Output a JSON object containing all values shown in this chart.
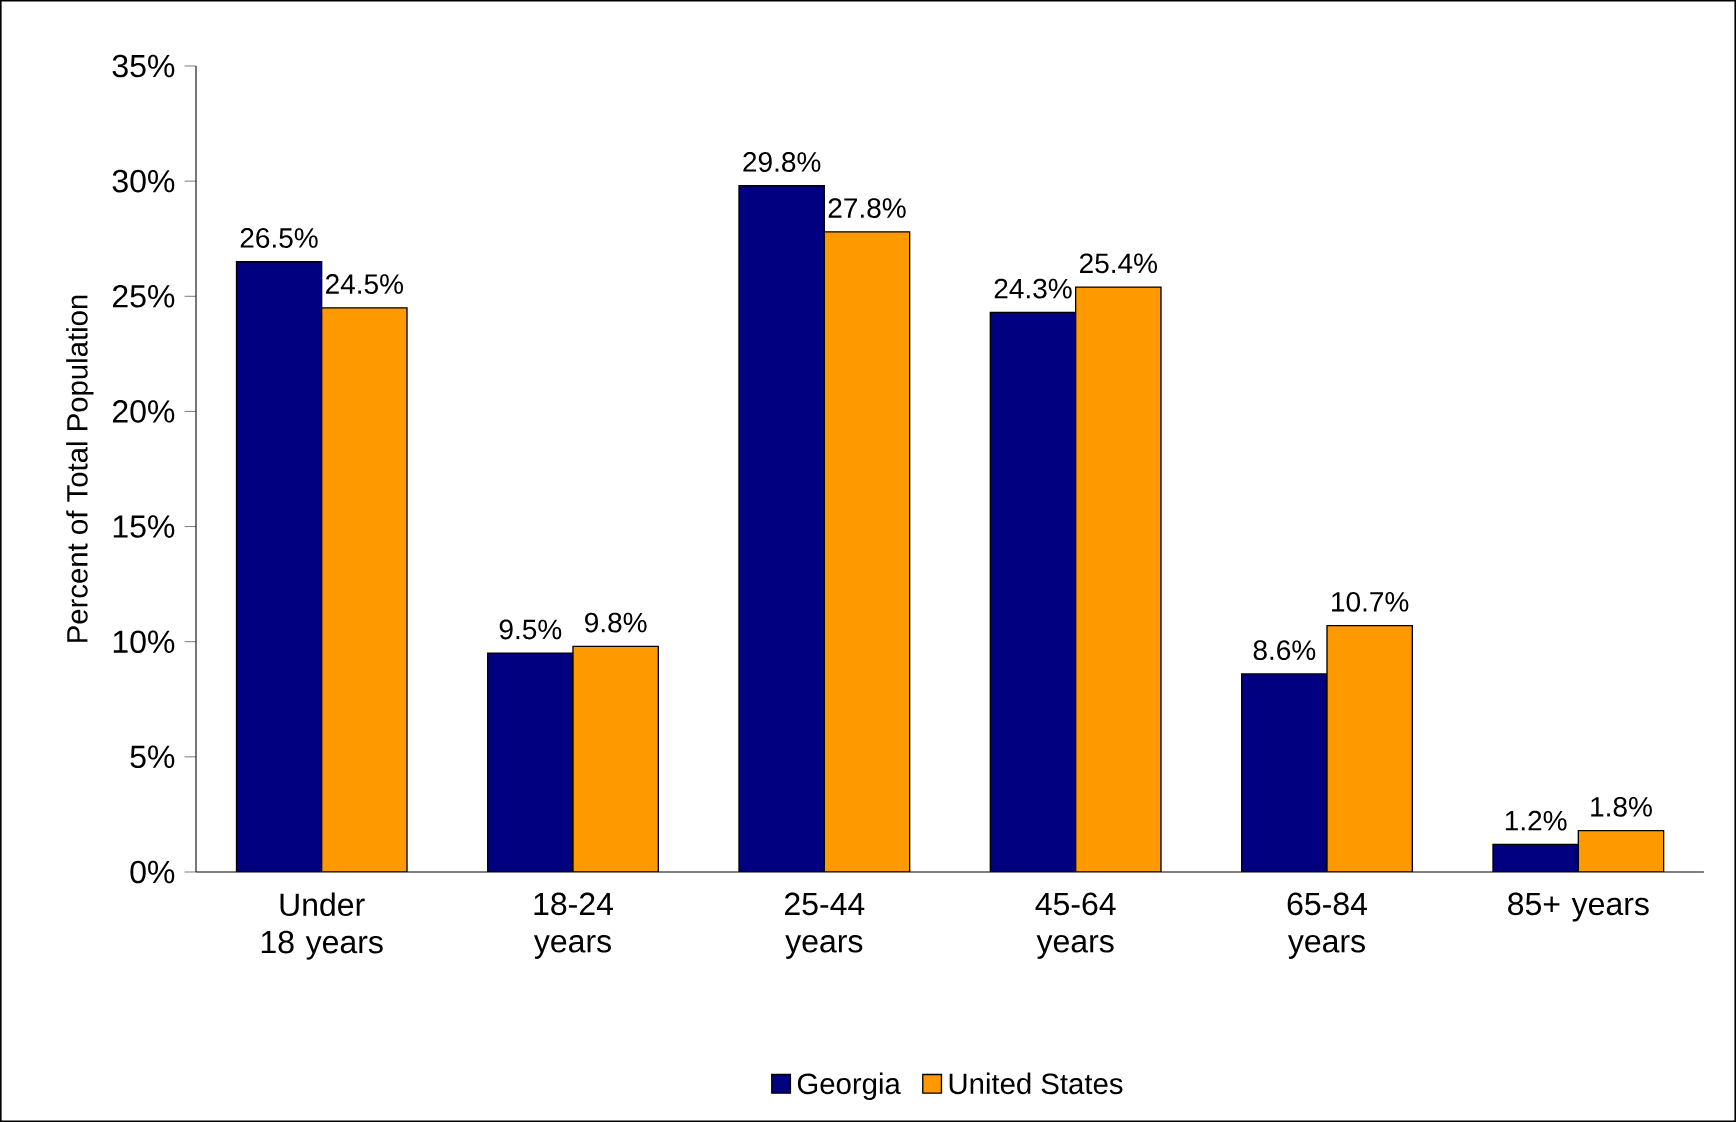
{
  "chart_data": {
    "type": "bar",
    "ylabel": "Percent of Total Population",
    "categories": [
      "Under 18 years",
      "18-24 years",
      "25-44 years",
      "45-64 years",
      "65-84 years",
      "85+ years"
    ],
    "series": [
      {
        "name": "Georgia",
        "color": "#000080",
        "values": [
          26.5,
          9.5,
          29.8,
          24.3,
          8.6,
          1.2
        ],
        "value_labels": [
          "26.5%",
          "9.5%",
          "29.8%",
          "24.3%",
          "8.6%",
          "1.2%"
        ]
      },
      {
        "name": "United States",
        "color": "#ff9900",
        "values": [
          24.5,
          9.8,
          27.8,
          25.4,
          10.7,
          1.8
        ],
        "value_labels": [
          "24.5%",
          "9.8%",
          "27.8%",
          "25.4%",
          "10.7%",
          "1.8%"
        ]
      }
    ],
    "ylim": [
      0,
      35
    ],
    "yticks": [
      {
        "value": 0,
        "label": "0%"
      },
      {
        "value": 5,
        "label": "5%"
      },
      {
        "value": 10,
        "label": "10%"
      },
      {
        "value": 15,
        "label": "15%"
      },
      {
        "value": 20,
        "label": "20%"
      },
      {
        "value": 25,
        "label": "25%"
      },
      {
        "value": 30,
        "label": "30%"
      },
      {
        "value": 35,
        "label": "35%"
      }
    ],
    "grid": false,
    "legend": "bottom"
  }
}
